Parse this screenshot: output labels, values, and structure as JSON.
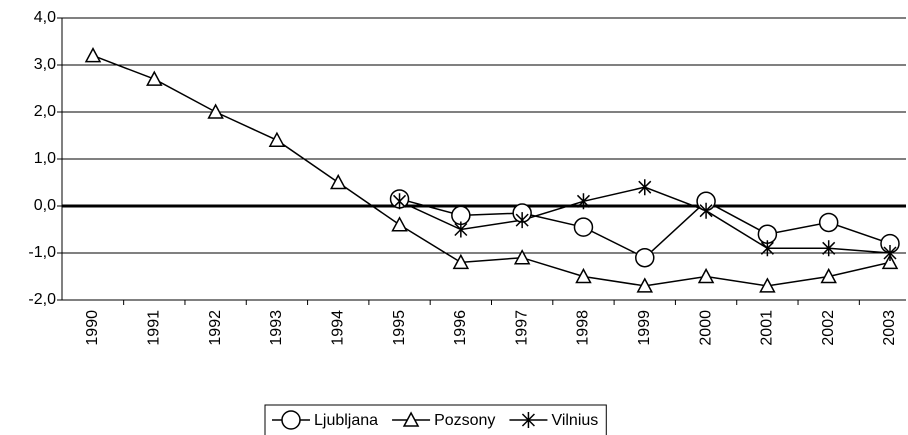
{
  "chart_data": {
    "type": "line",
    "categories": [
      "1990",
      "1991",
      "1992",
      "1993",
      "1994",
      "1995",
      "1996",
      "1997",
      "1998",
      "1999",
      "2000",
      "2001",
      "2002",
      "2003"
    ],
    "series": [
      {
        "name": "Ljubljana",
        "color": "#000000",
        "marker": "circle",
        "values": [
          null,
          null,
          null,
          null,
          null,
          0.15,
          -0.2,
          -0.15,
          -0.45,
          -1.1,
          0.1,
          -0.6,
          -0.35,
          -0.8
        ]
      },
      {
        "name": "Pozsony",
        "color": "#000000",
        "marker": "triangle",
        "values": [
          3.2,
          2.7,
          2.0,
          1.4,
          0.5,
          -0.4,
          -1.2,
          -1.1,
          -1.5,
          -1.7,
          -1.5,
          -1.7,
          -1.5,
          -1.2
        ]
      },
      {
        "name": "Vilnius",
        "color": "#000000",
        "marker": "asterisk",
        "values": [
          null,
          null,
          null,
          null,
          null,
          0.1,
          -0.5,
          -0.3,
          0.1,
          0.4,
          -0.1,
          -0.9,
          -0.9,
          -1.0
        ]
      }
    ],
    "ylim": [
      -2,
      4
    ],
    "yticks": [
      {
        "value": -2,
        "label": "-2,0"
      },
      {
        "value": -1,
        "label": "-1,0"
      },
      {
        "value": 0,
        "label": "0,0"
      },
      {
        "value": 1,
        "label": "1,0"
      },
      {
        "value": 2,
        "label": "2,0"
      },
      {
        "value": 3,
        "label": "3,0"
      },
      {
        "value": 4,
        "label": "4,0"
      }
    ],
    "grid": true,
    "legend": "bottom"
  }
}
